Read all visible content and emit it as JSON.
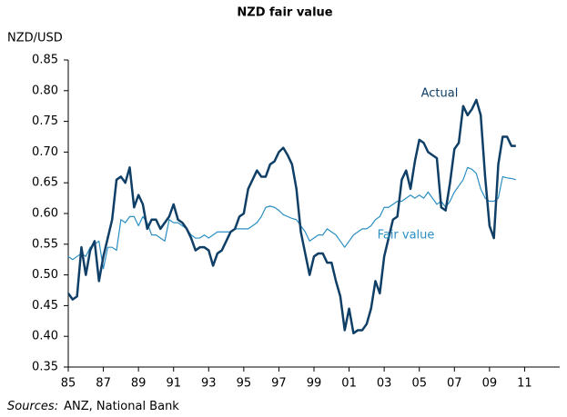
{
  "chart_data": {
    "type": "line",
    "title": "NZD fair value",
    "y_label": "NZD/USD",
    "source_label": "Sources:",
    "source": "ANZ, National Bank",
    "x": [
      1985,
      1985.25,
      1985.5,
      1985.75,
      1986,
      1986.25,
      1986.5,
      1986.75,
      1987,
      1987.25,
      1987.5,
      1987.75,
      1988,
      1988.25,
      1988.5,
      1988.75,
      1989,
      1989.25,
      1989.5,
      1989.75,
      1990,
      1990.25,
      1990.5,
      1990.75,
      1991,
      1991.25,
      1991.5,
      1991.75,
      1992,
      1992.25,
      1992.5,
      1992.75,
      1993,
      1993.25,
      1993.5,
      1993.75,
      1994,
      1994.25,
      1994.5,
      1994.75,
      1995,
      1995.25,
      1995.5,
      1995.75,
      1996,
      1996.25,
      1996.5,
      1996.75,
      1997,
      1997.25,
      1997.5,
      1997.75,
      1998,
      1998.25,
      1998.5,
      1998.75,
      1999,
      1999.25,
      1999.5,
      1999.75,
      2000,
      2000.25,
      2000.5,
      2000.75,
      2001,
      2001.25,
      2001.5,
      2001.75,
      2002,
      2002.25,
      2002.5,
      2002.75,
      2003,
      2003.25,
      2003.5,
      2003.75,
      2004,
      2004.25,
      2004.5,
      2004.75,
      2005,
      2005.25,
      2005.5,
      2005.75,
      2006,
      2006.25,
      2006.5,
      2006.75,
      2007,
      2007.25,
      2007.5,
      2007.75,
      2008,
      2008.25,
      2008.5,
      2008.75,
      2009,
      2009.25,
      2009.5,
      2009.75,
      2010,
      2010.25,
      2010.5
    ],
    "series": [
      {
        "name": "Actual",
        "color": "#0f3f66",
        "width": 2.5,
        "values": [
          0.47,
          0.46,
          0.465,
          0.545,
          0.5,
          0.54,
          0.555,
          0.49,
          0.53,
          0.56,
          0.59,
          0.655,
          0.66,
          0.65,
          0.675,
          0.61,
          0.63,
          0.615,
          0.575,
          0.59,
          0.59,
          0.575,
          0.585,
          0.595,
          0.615,
          0.59,
          0.585,
          0.575,
          0.56,
          0.54,
          0.545,
          0.545,
          0.54,
          0.515,
          0.535,
          0.54,
          0.555,
          0.57,
          0.575,
          0.595,
          0.6,
          0.64,
          0.655,
          0.67,
          0.66,
          0.66,
          0.68,
          0.685,
          0.7,
          0.707,
          0.695,
          0.68,
          0.64,
          0.57,
          0.535,
          0.5,
          0.53,
          0.535,
          0.535,
          0.52,
          0.52,
          0.49,
          0.465,
          0.41,
          0.445,
          0.405,
          0.41,
          0.41,
          0.42,
          0.445,
          0.49,
          0.47,
          0.53,
          0.56,
          0.59,
          0.595,
          0.655,
          0.67,
          0.64,
          0.685,
          0.72,
          0.715,
          0.7,
          0.695,
          0.69,
          0.61,
          0.605,
          0.65,
          0.705,
          0.715,
          0.775,
          0.76,
          0.77,
          0.785,
          0.76,
          0.66,
          0.58,
          0.56,
          0.68,
          0.725,
          0.725,
          0.71,
          0.71
        ]
      },
      {
        "name": "Fair value",
        "color": "#2b8fc2",
        "width": 1.2,
        "values": [
          0.53,
          0.525,
          0.53,
          0.535,
          0.53,
          0.545,
          0.55,
          0.555,
          0.51,
          0.545,
          0.545,
          0.54,
          0.59,
          0.585,
          0.595,
          0.595,
          0.58,
          0.595,
          0.585,
          0.565,
          0.565,
          0.56,
          0.555,
          0.59,
          0.585,
          0.585,
          0.58,
          0.575,
          0.565,
          0.56,
          0.56,
          0.565,
          0.56,
          0.565,
          0.57,
          0.57,
          0.57,
          0.57,
          0.575,
          0.575,
          0.575,
          0.575,
          0.58,
          0.585,
          0.595,
          0.61,
          0.612,
          0.61,
          0.605,
          0.598,
          0.595,
          0.592,
          0.59,
          0.58,
          0.57,
          0.555,
          0.56,
          0.565,
          0.565,
          0.575,
          0.57,
          0.565,
          0.555,
          0.545,
          0.555,
          0.565,
          0.57,
          0.575,
          0.575,
          0.58,
          0.59,
          0.595,
          0.61,
          0.61,
          0.615,
          0.62,
          0.62,
          0.625,
          0.63,
          0.625,
          0.63,
          0.625,
          0.635,
          0.625,
          0.615,
          0.62,
          0.61,
          0.62,
          0.635,
          0.645,
          0.655,
          0.675,
          0.672,
          0.665,
          0.64,
          0.625,
          0.62,
          0.62,
          0.625,
          0.66,
          0.658,
          0.657,
          0.655
        ]
      }
    ],
    "xlim": [
      1985,
      2013
    ],
    "xticks": [
      {
        "value": 1985,
        "label": "85"
      },
      {
        "value": 1987,
        "label": "87"
      },
      {
        "value": 1989,
        "label": "89"
      },
      {
        "value": 1991,
        "label": "91"
      },
      {
        "value": 1993,
        "label": "93"
      },
      {
        "value": 1995,
        "label": "95"
      },
      {
        "value": 1997,
        "label": "97"
      },
      {
        "value": 1999,
        "label": "99"
      },
      {
        "value": 2001,
        "label": "01"
      },
      {
        "value": 2003,
        "label": "03"
      },
      {
        "value": 2005,
        "label": "05"
      },
      {
        "value": 2007,
        "label": "07"
      },
      {
        "value": 2009,
        "label": "09"
      },
      {
        "value": 2011,
        "label": "11"
      }
    ],
    "ylim": [
      0.35,
      0.85
    ],
    "yticks": [
      0.35,
      {
        "value": 0.4,
        "label": "0.40"
      },
      0.45,
      {
        "value": 0.5,
        "label": "0.50"
      },
      0.55,
      {
        "value": 0.6,
        "label": "0.60"
      },
      0.65,
      {
        "value": 0.7,
        "label": "0.70"
      },
      0.75,
      {
        "value": 0.8,
        "label": "0.80"
      },
      0.85
    ],
    "grid": false
  }
}
